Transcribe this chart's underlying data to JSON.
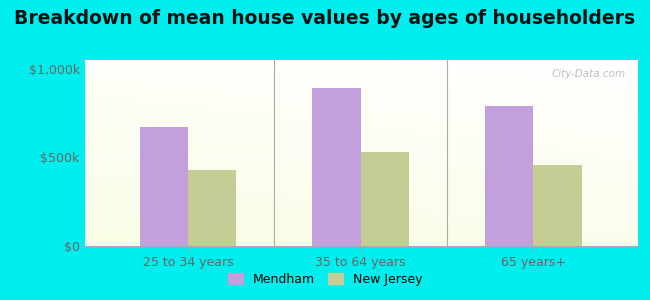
{
  "title": "Breakdown of mean house values by ages of householders",
  "categories": [
    "25 to 34 years",
    "35 to 64 years",
    "65 years+"
  ],
  "mendham_values": [
    670000,
    890000,
    790000
  ],
  "nj_values": [
    430000,
    530000,
    460000
  ],
  "bar_color_mendham": "#c2a0dc",
  "bar_color_nj": "#c5cc94",
  "ylim": [
    0,
    1050000
  ],
  "yticks": [
    0,
    500000,
    1000000
  ],
  "ytick_labels": [
    "$0",
    "$500k",
    "$1,000k"
  ],
  "background_color": "#00eeee",
  "legend_labels": [
    "Mendham",
    "New Jersey"
  ],
  "bar_width": 0.28,
  "title_fontsize": 13.5,
  "axis_label_fontsize": 9,
  "legend_fontsize": 9,
  "watermark_text": "City-Data.com"
}
